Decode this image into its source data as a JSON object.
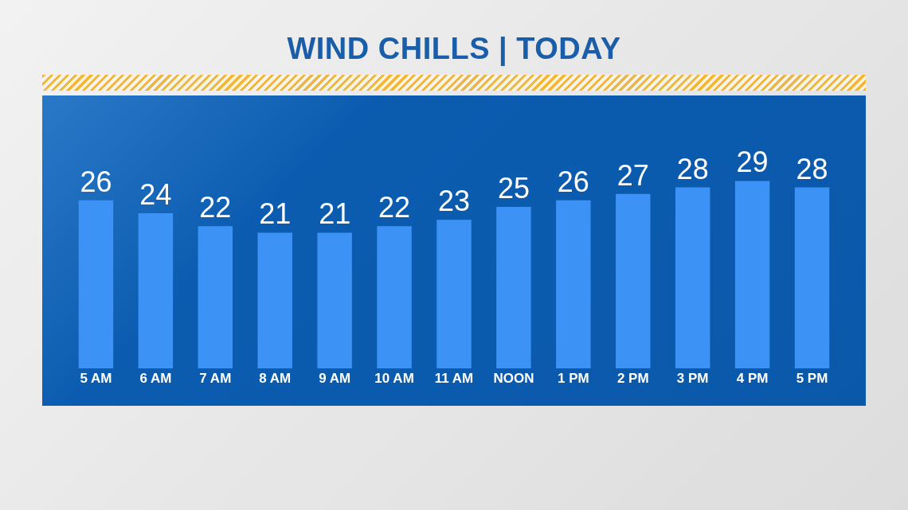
{
  "chart_data": {
    "type": "bar",
    "title": "WIND CHILLS | TODAY",
    "categories": [
      "5 AM",
      "6 AM",
      "7 AM",
      "8 AM",
      "9 AM",
      "10 AM",
      "11 AM",
      "NOON",
      "1 PM",
      "2 PM",
      "3 PM",
      "4 PM",
      "5 PM"
    ],
    "values": [
      26,
      24,
      22,
      21,
      21,
      22,
      23,
      25,
      26,
      27,
      28,
      29,
      28
    ],
    "color": "#3d93f5",
    "data_labels": true,
    "grid": false,
    "legend": false
  }
}
